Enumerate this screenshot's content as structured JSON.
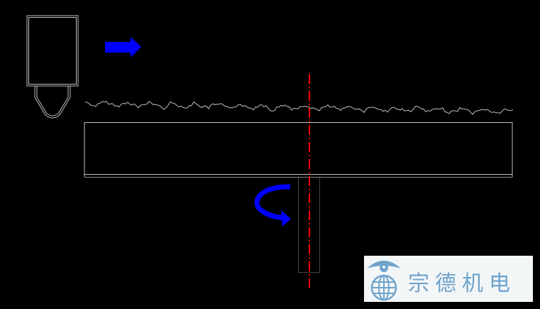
{
  "diagram": {
    "background": "#000000",
    "line_color": "#bfbfbf",
    "arrow_color": "#0000ff",
    "axis_color": "#ff0000",
    "feed_arrow_direction": "right",
    "rotation_arrow": "curved"
  },
  "logo": {
    "text": "宗德机电",
    "icon": "eye-globe-icon",
    "text_color": "#6fa3cc",
    "background": "#f3f6f7"
  }
}
